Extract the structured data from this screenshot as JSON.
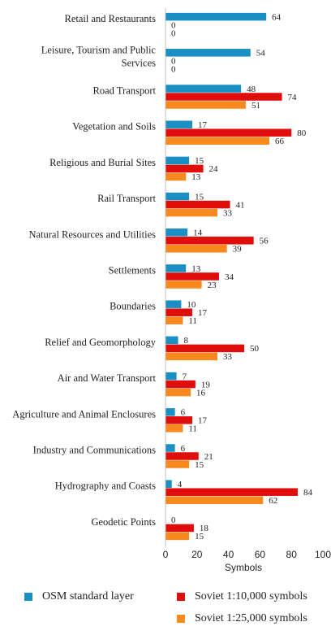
{
  "chart_data": {
    "type": "bar",
    "orientation": "horizontal",
    "categories": [
      "Retail and Restaurants",
      "Leisure, Tourism and Public Services",
      "Road Transport",
      "Vegetation and Soils",
      "Religious and Burial Sites",
      "Rail Transport",
      "Natural Resources and Utilities",
      "Settlements",
      "Boundaries",
      "Relief and Geomorphology",
      "Air and Water Transport",
      "Agriculture and Animal Enclosures",
      "Industry and Communications",
      "Hydrography and Coasts",
      "Geodetic Points"
    ],
    "series": [
      {
        "name": "OSM standard layer",
        "color": "#1a8fc4",
        "values": [
          64,
          54,
          48,
          17,
          15,
          15,
          14,
          13,
          10,
          8,
          7,
          6,
          6,
          4,
          0
        ]
      },
      {
        "name": "Soviet 1:10,000 symbols",
        "color": "#e00d0d",
        "values": [
          0,
          0,
          74,
          80,
          24,
          41,
          56,
          34,
          17,
          50,
          19,
          17,
          21,
          84,
          18
        ]
      },
      {
        "name": "Soviet 1:25,000 symbols",
        "color": "#f7891f",
        "values": [
          0,
          0,
          51,
          66,
          13,
          33,
          39,
          23,
          11,
          33,
          16,
          11,
          15,
          62,
          15
        ]
      }
    ],
    "xlabel": "Symbols",
    "xlim": [
      0,
      100
    ],
    "xticks": [
      0,
      20,
      40,
      60,
      80,
      100
    ],
    "grid": false,
    "legend_position": "bottom"
  }
}
